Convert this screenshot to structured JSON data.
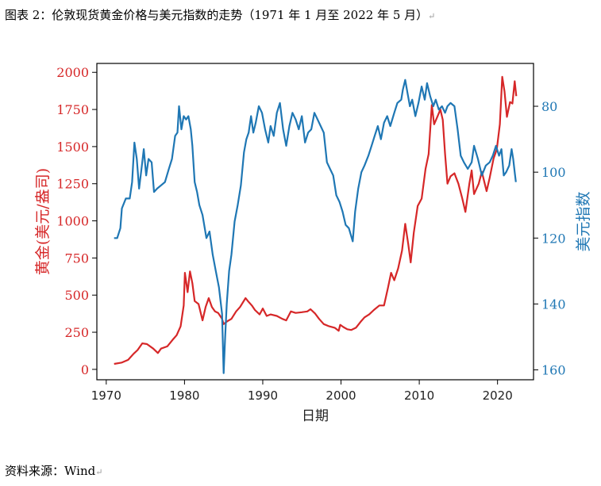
{
  "caption": "图表 2：伦敦现货黄金价格与美元指数的走势（1971 年 1 月至 2022 年 5 月）",
  "source": "资料来源：Wind",
  "paragraph_mark": "↵",
  "chart_data": {
    "type": "line",
    "xlabel": "日期",
    "y_left_label": "黄金(美元/盎司)",
    "y_right_label": "美元指数",
    "xlim": [
      1968.8,
      2024.6
    ],
    "y_left_lim": [
      -70,
      2060
    ],
    "y_right_lim": [
      163,
      67
    ],
    "right_axis_inverted": true,
    "x_ticks": [
      1970,
      1980,
      1990,
      2000,
      2010,
      2020
    ],
    "y_left_ticks": [
      0,
      250,
      500,
      750,
      1000,
      1250,
      1500,
      1750,
      2000
    ],
    "y_right_ticks": [
      80,
      100,
      120,
      140,
      160
    ],
    "series": [
      {
        "name": "黄金(美元/盎司)",
        "axis": "left",
        "color": "#d62728",
        "points": [
          [
            1971.0,
            37
          ],
          [
            1972.0,
            46
          ],
          [
            1972.8,
            64
          ],
          [
            1973.5,
            105
          ],
          [
            1974.0,
            130
          ],
          [
            1974.6,
            175
          ],
          [
            1975.2,
            170
          ],
          [
            1976.0,
            140
          ],
          [
            1976.6,
            110
          ],
          [
            1977.0,
            140
          ],
          [
            1977.8,
            155
          ],
          [
            1978.5,
            200
          ],
          [
            1979.0,
            230
          ],
          [
            1979.5,
            290
          ],
          [
            1979.9,
            430
          ],
          [
            1980.05,
            650
          ],
          [
            1980.4,
            520
          ],
          [
            1980.7,
            660
          ],
          [
            1981.0,
            580
          ],
          [
            1981.3,
            460
          ],
          [
            1981.8,
            440
          ],
          [
            1982.3,
            330
          ],
          [
            1982.7,
            420
          ],
          [
            1983.1,
            480
          ],
          [
            1983.5,
            420
          ],
          [
            1983.9,
            390
          ],
          [
            1984.3,
            380
          ],
          [
            1984.8,
            340
          ],
          [
            1985.0,
            305
          ],
          [
            1985.5,
            325
          ],
          [
            1986.0,
            340
          ],
          [
            1986.6,
            390
          ],
          [
            1987.1,
            420
          ],
          [
            1987.8,
            480
          ],
          [
            1988.1,
            460
          ],
          [
            1988.6,
            430
          ],
          [
            1989.0,
            400
          ],
          [
            1989.6,
            370
          ],
          [
            1990.0,
            410
          ],
          [
            1990.5,
            360
          ],
          [
            1991.0,
            370
          ],
          [
            1991.8,
            360
          ],
          [
            1992.5,
            340
          ],
          [
            1993.0,
            330
          ],
          [
            1993.6,
            390
          ],
          [
            1994.2,
            380
          ],
          [
            1995.0,
            385
          ],
          [
            1995.7,
            390
          ],
          [
            1996.1,
            405
          ],
          [
            1996.7,
            375
          ],
          [
            1997.2,
            340
          ],
          [
            1997.8,
            305
          ],
          [
            1998.5,
            290
          ],
          [
            1999.2,
            280
          ],
          [
            1999.7,
            260
          ],
          [
            1999.9,
            300
          ],
          [
            2000.3,
            285
          ],
          [
            2000.8,
            270
          ],
          [
            2001.3,
            265
          ],
          [
            2001.9,
            280
          ],
          [
            2002.5,
            320
          ],
          [
            2003.0,
            350
          ],
          [
            2003.6,
            370
          ],
          [
            2004.2,
            400
          ],
          [
            2004.9,
            430
          ],
          [
            2005.5,
            430
          ],
          [
            2006.0,
            550
          ],
          [
            2006.4,
            650
          ],
          [
            2006.8,
            600
          ],
          [
            2007.3,
            680
          ],
          [
            2007.8,
            800
          ],
          [
            2008.2,
            980
          ],
          [
            2008.6,
            840
          ],
          [
            2008.9,
            720
          ],
          [
            2009.3,
            920
          ],
          [
            2009.8,
            1100
          ],
          [
            2010.3,
            1150
          ],
          [
            2010.8,
            1350
          ],
          [
            2011.2,
            1450
          ],
          [
            2011.6,
            1780
          ],
          [
            2011.9,
            1650
          ],
          [
            2012.3,
            1700
          ],
          [
            2012.7,
            1750
          ],
          [
            2013.0,
            1680
          ],
          [
            2013.3,
            1450
          ],
          [
            2013.6,
            1250
          ],
          [
            2014.0,
            1300
          ],
          [
            2014.5,
            1320
          ],
          [
            2015.0,
            1250
          ],
          [
            2015.5,
            1150
          ],
          [
            2015.9,
            1060
          ],
          [
            2016.4,
            1250
          ],
          [
            2016.7,
            1340
          ],
          [
            2017.0,
            1180
          ],
          [
            2017.6,
            1250
          ],
          [
            2018.0,
            1330
          ],
          [
            2018.6,
            1200
          ],
          [
            2019.0,
            1290
          ],
          [
            2019.5,
            1420
          ],
          [
            2019.9,
            1480
          ],
          [
            2020.3,
            1650
          ],
          [
            2020.6,
            1970
          ],
          [
            2020.9,
            1870
          ],
          [
            2021.2,
            1700
          ],
          [
            2021.6,
            1800
          ],
          [
            2021.9,
            1790
          ],
          [
            2022.2,
            1940
          ],
          [
            2022.4,
            1840
          ]
        ]
      },
      {
        "name": "美元指数",
        "axis": "right",
        "color": "#1f77b4",
        "points": [
          [
            1971.0,
            120
          ],
          [
            1971.4,
            120
          ],
          [
            1971.8,
            117
          ],
          [
            1972.0,
            111
          ],
          [
            1972.5,
            108
          ],
          [
            1973.0,
            108
          ],
          [
            1973.3,
            103
          ],
          [
            1973.6,
            91
          ],
          [
            1973.9,
            96
          ],
          [
            1974.2,
            105
          ],
          [
            1974.5,
            99
          ],
          [
            1974.8,
            93
          ],
          [
            1975.1,
            101
          ],
          [
            1975.4,
            96
          ],
          [
            1975.8,
            97
          ],
          [
            1976.1,
            106
          ],
          [
            1976.5,
            105
          ],
          [
            1977.0,
            104
          ],
          [
            1977.5,
            103
          ],
          [
            1978.0,
            99
          ],
          [
            1978.4,
            96
          ],
          [
            1978.8,
            89
          ],
          [
            1979.1,
            88
          ],
          [
            1979.3,
            80
          ],
          [
            1979.6,
            87
          ],
          [
            1979.9,
            83
          ],
          [
            1980.2,
            84
          ],
          [
            1980.5,
            83
          ],
          [
            1980.8,
            87
          ],
          [
            1981.0,
            92
          ],
          [
            1981.3,
            103
          ],
          [
            1981.6,
            106
          ],
          [
            1981.9,
            110
          ],
          [
            1982.3,
            113
          ],
          [
            1982.8,
            120
          ],
          [
            1983.2,
            118
          ],
          [
            1983.6,
            125
          ],
          [
            1984.0,
            130
          ],
          [
            1984.4,
            135
          ],
          [
            1984.8,
            143
          ],
          [
            1985.0,
            161
          ],
          [
            1985.2,
            150
          ],
          [
            1985.4,
            140
          ],
          [
            1985.7,
            130
          ],
          [
            1986.0,
            125
          ],
          [
            1986.4,
            115
          ],
          [
            1986.8,
            110
          ],
          [
            1987.2,
            104
          ],
          [
            1987.6,
            94
          ],
          [
            1987.9,
            90
          ],
          [
            1988.2,
            88
          ],
          [
            1988.5,
            83
          ],
          [
            1988.8,
            88
          ],
          [
            1989.1,
            85
          ],
          [
            1989.5,
            80
          ],
          [
            1989.9,
            82
          ],
          [
            1990.3,
            87
          ],
          [
            1990.7,
            91
          ],
          [
            1991.0,
            86
          ],
          [
            1991.4,
            89
          ],
          [
            1991.8,
            82
          ],
          [
            1992.2,
            79
          ],
          [
            1992.6,
            87
          ],
          [
            1993.0,
            92
          ],
          [
            1993.4,
            86
          ],
          [
            1993.8,
            82
          ],
          [
            1994.2,
            84
          ],
          [
            1994.6,
            87
          ],
          [
            1995.0,
            83
          ],
          [
            1995.4,
            91
          ],
          [
            1995.8,
            88
          ],
          [
            1996.2,
            87
          ],
          [
            1996.6,
            82
          ],
          [
            1997.0,
            84
          ],
          [
            1997.4,
            86
          ],
          [
            1997.8,
            88
          ],
          [
            1998.2,
            97
          ],
          [
            1998.6,
            99
          ],
          [
            1999.0,
            101
          ],
          [
            1999.4,
            107
          ],
          [
            1999.8,
            109
          ],
          [
            2000.2,
            112
          ],
          [
            2000.6,
            116
          ],
          [
            2001.0,
            117
          ],
          [
            2001.5,
            121
          ],
          [
            2001.8,
            112
          ],
          [
            2002.2,
            105
          ],
          [
            2002.6,
            100
          ],
          [
            2003.0,
            98
          ],
          [
            2003.5,
            95
          ],
          [
            2003.9,
            92
          ],
          [
            2004.3,
            89
          ],
          [
            2004.7,
            86
          ],
          [
            2005.1,
            90
          ],
          [
            2005.5,
            85
          ],
          [
            2005.9,
            83
          ],
          [
            2006.3,
            86
          ],
          [
            2006.8,
            82
          ],
          [
            2007.2,
            79
          ],
          [
            2007.7,
            78
          ],
          [
            2007.9,
            75
          ],
          [
            2008.2,
            72
          ],
          [
            2008.5,
            76
          ],
          [
            2008.8,
            80
          ],
          [
            2009.1,
            78
          ],
          [
            2009.5,
            83
          ],
          [
            2009.9,
            79
          ],
          [
            2010.3,
            74
          ],
          [
            2010.7,
            78
          ],
          [
            2011.0,
            73
          ],
          [
            2011.4,
            77
          ],
          [
            2011.8,
            80
          ],
          [
            2012.1,
            78
          ],
          [
            2012.5,
            81
          ],
          [
            2012.9,
            80
          ],
          [
            2013.3,
            82
          ],
          [
            2013.6,
            80
          ],
          [
            2014.0,
            79
          ],
          [
            2014.5,
            80
          ],
          [
            2014.9,
            87
          ],
          [
            2015.3,
            95
          ],
          [
            2015.7,
            97
          ],
          [
            2016.2,
            99
          ],
          [
            2016.7,
            97
          ],
          [
            2017.0,
            92
          ],
          [
            2017.5,
            96
          ],
          [
            2018.0,
            101
          ],
          [
            2018.5,
            98
          ],
          [
            2019.0,
            97
          ],
          [
            2019.4,
            95
          ],
          [
            2019.8,
            92
          ],
          [
            2020.2,
            95
          ],
          [
            2020.5,
            93
          ],
          [
            2020.8,
            101
          ],
          [
            2021.1,
            100
          ],
          [
            2021.5,
            98
          ],
          [
            2021.8,
            93
          ],
          [
            2022.0,
            96
          ],
          [
            2022.2,
            100
          ],
          [
            2022.35,
            103
          ]
        ]
      }
    ]
  }
}
